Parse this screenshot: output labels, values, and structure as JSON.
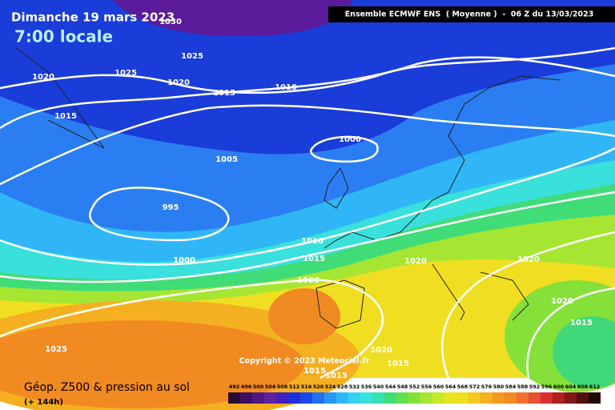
{
  "header": {
    "date": "Dimanche 19 mars 2023",
    "time": "7:00 locale",
    "model": "Ensemble ECMWF ENS  ( Moyenne )  -  06 Z du 13/03/2023"
  },
  "isobar_labels": [
    1030,
    1025,
    1025,
    1020,
    1020,
    1010,
    1015,
    1015,
    1000,
    1005,
    995,
    1010,
    1015,
    1000,
    1020,
    1020,
    1020,
    1020,
    1015,
    1025,
    1020,
    1015,
    1015,
    1015
  ],
  "copyright": "Copyright © 2023 Meteociel.fr",
  "footer": {
    "title": "Géop. Z500 & pression au sol",
    "lead": "(+ 144h)"
  },
  "scale": {
    "ticks": [
      492,
      496,
      500,
      504,
      508,
      512,
      516,
      520,
      524,
      528,
      532,
      536,
      540,
      544,
      548,
      552,
      556,
      560,
      564,
      568,
      572,
      576,
      580,
      584,
      588,
      592,
      596,
      600,
      604,
      608,
      612
    ]
  }
}
